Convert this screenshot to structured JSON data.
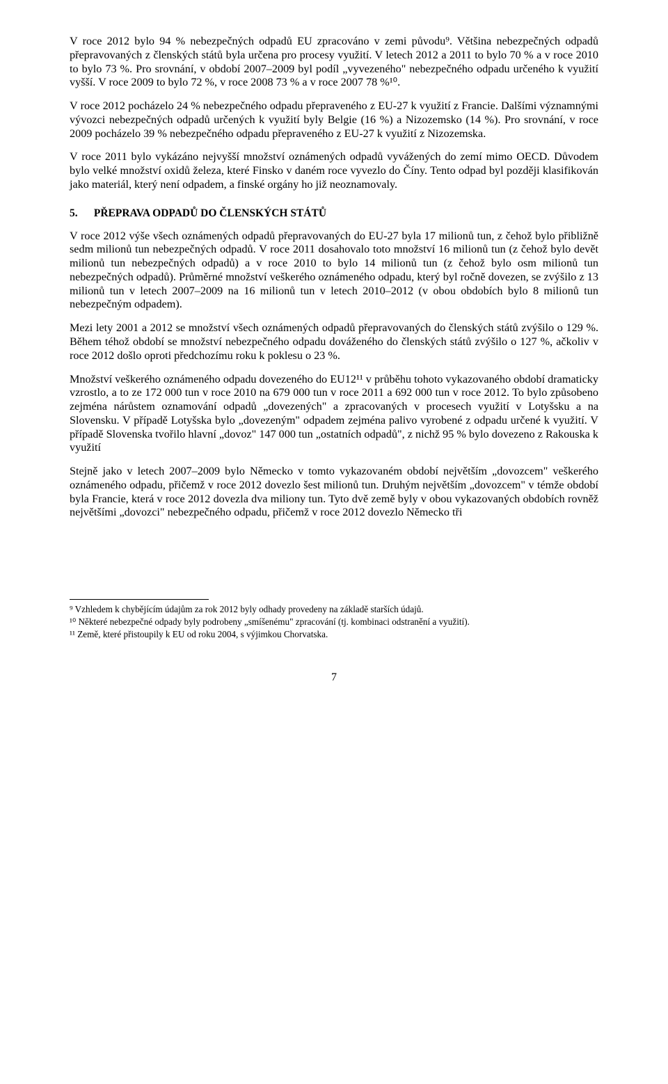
{
  "paragraphs": {
    "p1": "V roce 2012 bylo 94 % nebezpečných odpadů EU zpracováno v zemi původu⁹. Většina nebezpečných odpadů přepravovaných z členských států byla určena pro procesy využití. V letech 2012 a 2011 to bylo 70 % a v roce 2010 to bylo 73 %. Pro srovnání, v období 2007–2009 byl podíl „vyvezeného\" nebezpečného odpadu určeného k využití vyšší. V roce 2009 to bylo 72 %, v roce 2008 73 % a v roce 2007 78 %¹⁰.",
    "p2": "V roce 2012 pocházelo 24 % nebezpečného odpadu přepraveného z EU-27 k využití z Francie. Dalšími významnými vývozci nebezpečných odpadů určených k využití byly Belgie (16 %) a Nizozemsko (14 %). Pro srovnání, v roce 2009 pocházelo 39 % nebezpečného odpadu přepraveného z EU-27 k využití z Nizozemska.",
    "p3": "V roce 2011 bylo vykázáno nejvyšší množství oznámených odpadů vyvážených do zemí mimo OECD. Důvodem bylo velké množství oxidů železa, které Finsko v daném roce vyvezlo do Číny. Tento odpad byl později klasifikován jako materiál, který není odpadem, a finské orgány ho již neoznamovaly.",
    "p4": "V roce 2012 výše všech oznámených odpadů přepravovaných do EU-27 byla 17 milionů tun, z čehož bylo přibližně sedm milionů tun nebezpečných odpadů. V roce 2011 dosahovalo toto množství 16 milionů tun (z čehož bylo devět milionů tun nebezpečných odpadů) a v roce 2010 to bylo 14 milionů tun (z čehož bylo osm milionů tun nebezpečných odpadů). Průměrné množství veškerého oznámeného odpadu, který byl ročně dovezen, se zvýšilo z 13 milionů tun v letech 2007–2009 na 16 milionů tun v letech 2010–2012 (v obou obdobích bylo 8 milionů tun nebezpečným odpadem).",
    "p5": "Mezi lety 2001 a 2012 se množství všech oznámených odpadů přepravovaných do členských států zvýšilo o 129 %. Během téhož období se množství nebezpečného odpadu dováženého do členských států zvýšilo o 127 %, ačkoliv v roce 2012 došlo oproti předchozímu roku k poklesu o 23 %.",
    "p6": "Množství veškerého oznámeného odpadu dovezeného do EU12¹¹ v průběhu tohoto vykazovaného období dramaticky vzrostlo, a to ze 172 000 tun v roce 2010 na 679 000 tun v roce 2011 a 692 000 tun v roce 2012. To bylo způsobeno zejména nárůstem oznamování odpadů „dovezených\" a zpracovaných v procesech využití v Lotyšsku a na Slovensku. V případě Lotyšska bylo „dovezeným\" odpadem zejména palivo vyrobené z odpadu určené k využití. V případě Slovenska tvořilo hlavní „dovoz\" 147 000 tun „ostatních odpadů\", z nichž 95 % bylo dovezeno z Rakouska k využití",
    "p7": "Stejně jako v letech 2007–2009 bylo Německo v tomto vykazovaném období největším „dovozcem\" veškerého oznámeného odpadu, přičemž v roce 2012 dovezlo šest milionů tun. Druhým největším „dovozcem\" v témže období byla Francie, která v roce 2012 dovezla dva miliony tun. Tyto dvě země byly v obou vykazovaných obdobích rovněž největšími „dovozci\" nebezpečného odpadu, přičemž v roce 2012 dovezlo Německo tři"
  },
  "heading": {
    "number": "5.",
    "text": "PŘEPRAVA ODPADŮ DO ČLENSKÝCH STÁTŮ"
  },
  "footnotes": {
    "f9": "⁹ Vzhledem k chybějícím údajům za rok 2012 byly odhady provedeny na základě starších údajů.",
    "f10": "¹⁰ Některé nebezpečné odpady byly podrobeny „smíšenému\" zpracování (tj. kombinaci odstranění a využití).",
    "f11": "¹¹ Země, které přistoupily k EU od roku 2004, s výjimkou Chorvatska."
  },
  "pageNumber": "7"
}
